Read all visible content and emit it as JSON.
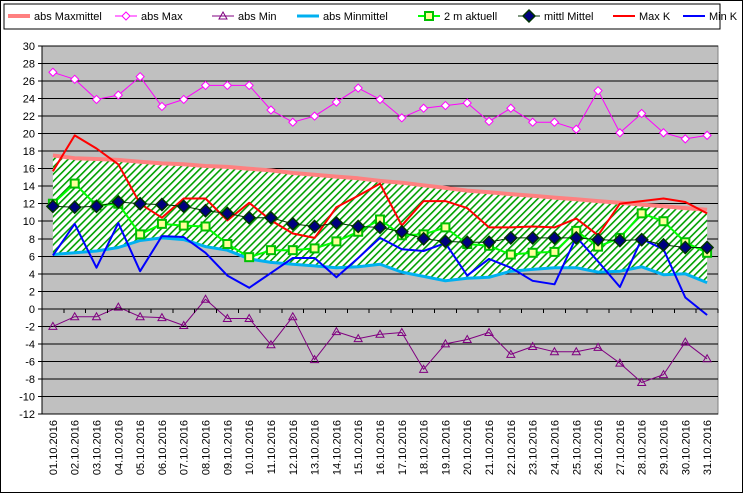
{
  "chart_data": {
    "type": "line",
    "title": "",
    "xlabel": "",
    "ylabel": "",
    "ylim": [
      -12,
      30
    ],
    "ystep": 2,
    "grid": true,
    "legend_position": "top",
    "plot_background": "#c0c0c0",
    "categories": [
      "01.10.2016",
      "02.10.2016",
      "03.10.2016",
      "04.10.2016",
      "05.10.2016",
      "06.10.2016",
      "07.10.2016",
      "08.10.2016",
      "09.10.2016",
      "10.10.2016",
      "11.10.2016",
      "12.10.2016",
      "13.10.2016",
      "14.10.2016",
      "15.10.2016",
      "16.10.2016",
      "17.10.2016",
      "18.10.2016",
      "19.10.2016",
      "20.10.2016",
      "21.10.2016",
      "22.10.2016",
      "23.10.2016",
      "24.10.2016",
      "25.10.2016",
      "26.10.2016",
      "27.10.2016",
      "28.10.2016",
      "29.10.2016",
      "30.10.2016",
      "31.10.2016"
    ],
    "band": {
      "upper_series": "abs Maxmittel",
      "lower_series": "abs Minmittel",
      "fill": "#ffffff",
      "hatch": "#00a000"
    },
    "series": [
      {
        "name": "abs Maxmittel",
        "color": "#ff8080",
        "marker": "none",
        "width": 4,
        "values": [
          17.5,
          17.2,
          17.1,
          17.0,
          16.8,
          16.6,
          16.5,
          16.3,
          16.2,
          16.0,
          15.8,
          15.5,
          15.3,
          15.1,
          14.9,
          14.6,
          14.4,
          14.1,
          13.8,
          13.5,
          13.3,
          13.1,
          12.9,
          12.7,
          12.5,
          12.3,
          12.1,
          11.9,
          11.7,
          11.5,
          11.3
        ]
      },
      {
        "name": "abs Max",
        "color": "#ff00ff",
        "marker": "diamond-open",
        "width": 1,
        "values": [
          27.0,
          26.2,
          23.9,
          24.4,
          26.5,
          23.1,
          23.9,
          25.5,
          25.5,
          25.5,
          22.7,
          21.3,
          22.0,
          23.6,
          25.2,
          23.9,
          21.8,
          22.9,
          23.2,
          23.5,
          21.4,
          22.9,
          21.3,
          21.3,
          20.5,
          24.9,
          20.1,
          22.3,
          20.1,
          19.4,
          19.8
        ]
      },
      {
        "name": "abs Min",
        "color": "#800080",
        "marker": "triangle-open",
        "width": 1,
        "values": [
          -2.0,
          -0.9,
          -0.9,
          0.2,
          -0.9,
          -1.0,
          -1.9,
          1.1,
          -1.1,
          -1.1,
          -4.1,
          -0.9,
          -5.8,
          -2.6,
          -3.4,
          -2.9,
          -2.7,
          -6.9,
          -4.0,
          -3.5,
          -2.7,
          -5.2,
          -4.3,
          -4.9,
          -4.9,
          -4.4,
          -6.2,
          -8.4,
          -7.5,
          -3.8,
          -5.7
        ]
      },
      {
        "name": "abs Minmittel",
        "color": "#00b0f0",
        "marker": "none",
        "width": 3,
        "values": [
          6.2,
          6.4,
          6.6,
          7.0,
          7.8,
          8.1,
          7.9,
          7.1,
          6.7,
          5.7,
          5.3,
          5.1,
          4.9,
          4.7,
          4.8,
          5.1,
          4.2,
          3.7,
          3.2,
          3.5,
          3.6,
          4.3,
          4.5,
          4.7,
          4.7,
          4.2,
          4.3,
          4.8,
          3.9,
          4.0,
          3.0
        ]
      },
      {
        "name": "2 m aktuell",
        "color": "#00ff00",
        "marker": "square-green",
        "width": 2,
        "values": [
          12.0,
          14.3,
          11.8,
          12.0,
          8.5,
          9.7,
          9.5,
          9.4,
          7.4,
          5.9,
          6.7,
          6.7,
          6.9,
          7.7,
          8.8,
          10.2,
          8.4,
          8.5,
          9.3,
          7.4,
          7.2,
          6.2,
          6.4,
          6.5,
          8.9,
          7.1,
          8.1,
          10.9,
          10.0,
          7.6,
          6.4
        ]
      },
      {
        "name": "mittl Mittel",
        "color": "#003300",
        "marker": "diamond-navy",
        "width": 1,
        "values": [
          11.7,
          11.6,
          11.7,
          12.2,
          12.0,
          11.9,
          11.7,
          11.2,
          10.9,
          10.4,
          10.4,
          9.7,
          9.4,
          9.8,
          9.4,
          9.3,
          8.8,
          8.0,
          7.7,
          7.6,
          7.6,
          8.1,
          8.1,
          8.1,
          8.1,
          7.9,
          7.8,
          7.9,
          7.3,
          7.0,
          7.0
        ]
      },
      {
        "name": "Max K",
        "color": "#ff0000",
        "marker": "none",
        "width": 2,
        "values": [
          15.7,
          19.8,
          18.3,
          16.5,
          12.0,
          10.4,
          12.6,
          12.6,
          10.1,
          12.1,
          10.1,
          8.6,
          8.1,
          11.6,
          12.9,
          14.3,
          9.5,
          12.3,
          12.3,
          11.5,
          9.3,
          9.3,
          9.4,
          9.3,
          10.3,
          8.4,
          12.0,
          12.3,
          12.6,
          12.2,
          10.9
        ]
      },
      {
        "name": "Min K",
        "color": "#0000ff",
        "marker": "none",
        "width": 2,
        "values": [
          6.1,
          9.7,
          4.7,
          9.8,
          4.3,
          8.3,
          8.2,
          6.4,
          3.8,
          2.4,
          4.1,
          5.8,
          5.8,
          3.6,
          5.8,
          8.1,
          6.8,
          6.6,
          7.5,
          3.8,
          5.7,
          4.7,
          3.2,
          2.8,
          8.2,
          5.4,
          2.5,
          8.0,
          6.8,
          1.3,
          -0.7
        ]
      }
    ]
  }
}
